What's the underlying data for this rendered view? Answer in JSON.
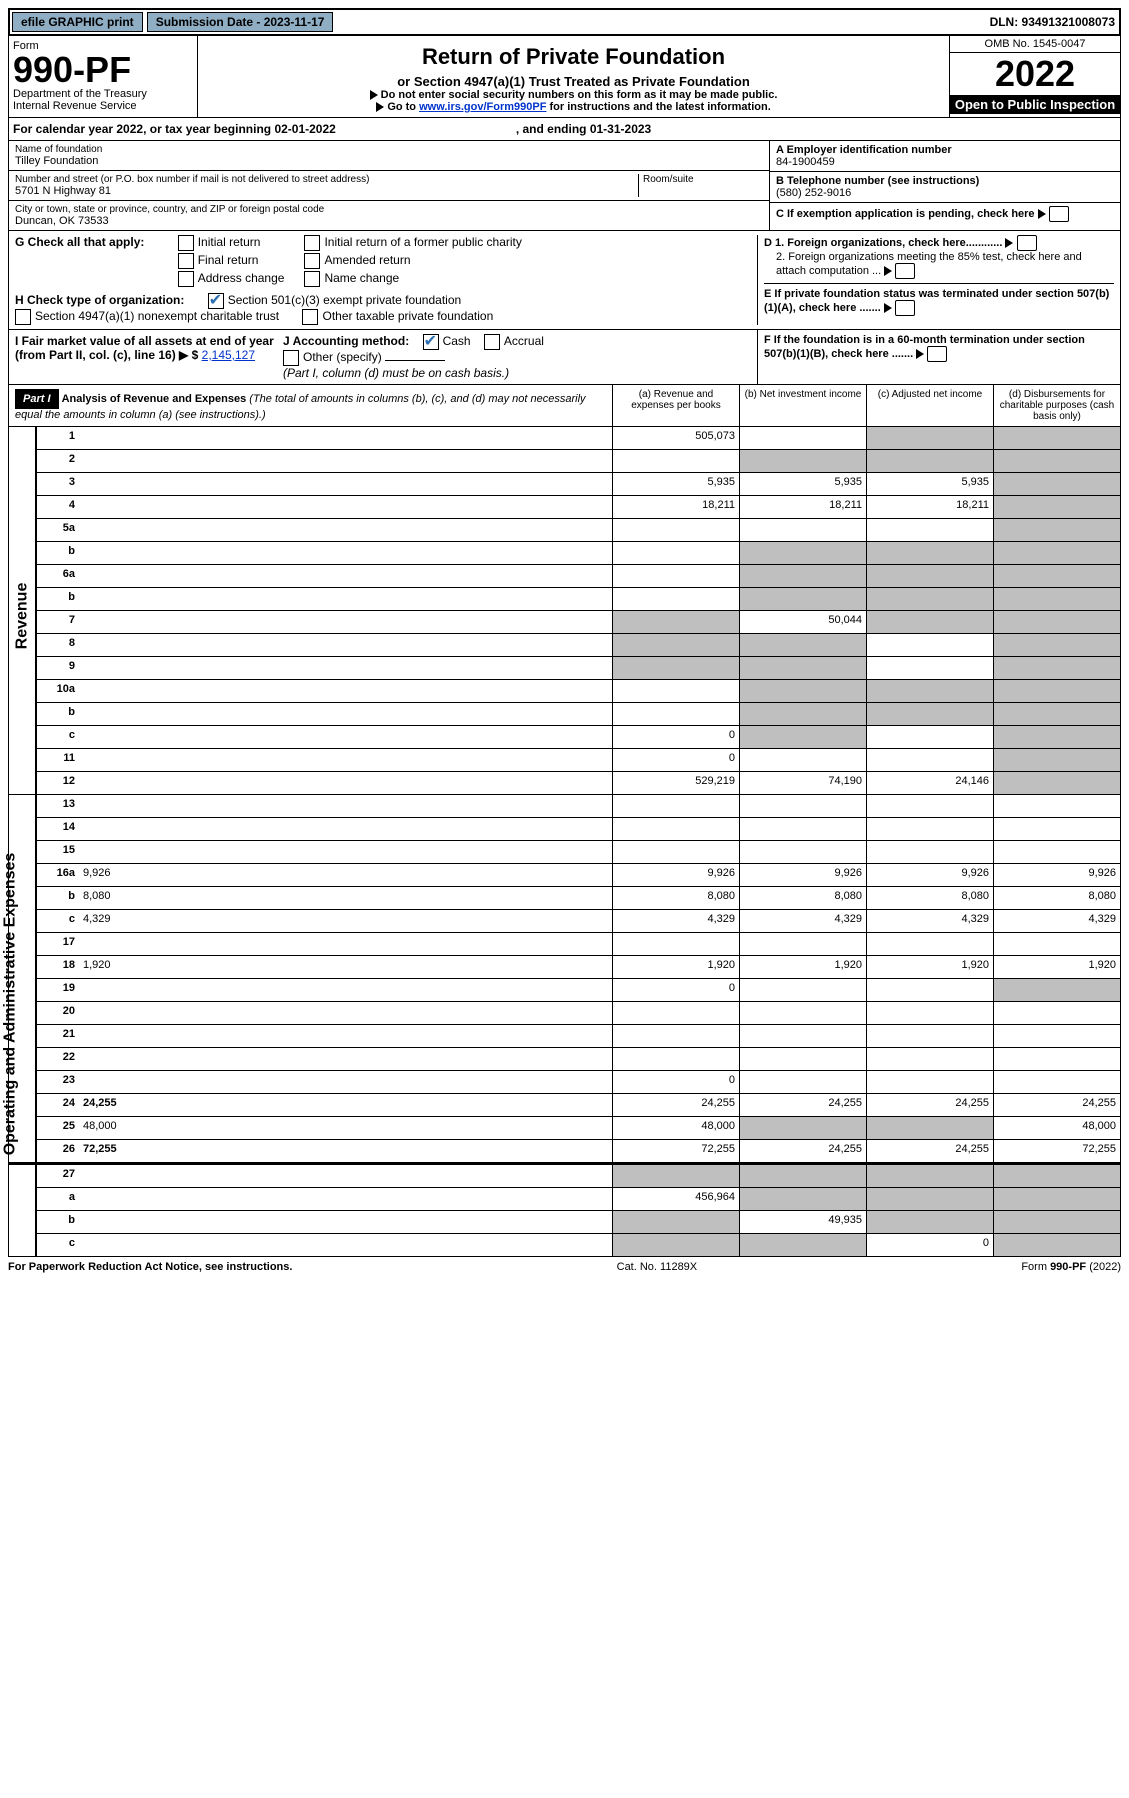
{
  "top": {
    "efile": "efile GRAPHIC print",
    "submission": "Submission Date - 2023-11-17",
    "dln": "DLN: 93491321008073"
  },
  "header": {
    "form_label": "Form",
    "form_no": "990-PF",
    "dept": "Department of the Treasury",
    "irs": "Internal Revenue Service",
    "title": "Return of Private Foundation",
    "subtitle": "or Section 4947(a)(1) Trust Treated as Private Foundation",
    "note1": "Do not enter social security numbers on this form as it may be made public.",
    "note2_pre": "Go to ",
    "note2_link": "www.irs.gov/Form990PF",
    "note2_post": " for instructions and the latest information.",
    "omb": "OMB No. 1545-0047",
    "year": "2022",
    "inspect": "Open to Public Inspection"
  },
  "cal": {
    "text": "For calendar year 2022, or tax year beginning 02-01-2022",
    "ending": ", and ending 01-31-2023"
  },
  "id": {
    "name_lbl": "Name of foundation",
    "name_val": "Tilley Foundation",
    "addr_lbl": "Number and street (or P.O. box number if mail is not delivered to street address)",
    "addr_val": "5701 N Highway 81",
    "room_lbl": "Room/suite",
    "city_lbl": "City or town, state or province, country, and ZIP or foreign postal code",
    "city_val": "Duncan, OK  73533",
    "a_lbl": "A Employer identification number",
    "a_val": "84-1900459",
    "b_lbl": "B Telephone number (see instructions)",
    "b_val": "(580) 252-9016",
    "c_lbl": "C If exemption application is pending, check here"
  },
  "g": {
    "label": "G Check all that apply:",
    "opts": [
      "Initial return",
      "Final return",
      "Address change",
      "Initial return of a former public charity",
      "Amended return",
      "Name change"
    ],
    "d1": "D 1. Foreign organizations, check here............",
    "d2": "2. Foreign organizations meeting the 85% test, check here and attach computation ...",
    "e": "E  If private foundation status was terminated under section 507(b)(1)(A), check here .......",
    "f": "F  If the foundation is in a 60-month termination under section 507(b)(1)(B), check here ......."
  },
  "h": {
    "label": "H Check type of organization:",
    "opt1": "Section 501(c)(3) exempt private foundation",
    "opt2": "Section 4947(a)(1) nonexempt charitable trust",
    "opt3": "Other taxable private foundation"
  },
  "i": {
    "label": "I Fair market value of all assets at end of year (from Part II, col. (c), line 16)",
    "arrow": "▶ $",
    "val": "2,145,127"
  },
  "j": {
    "label": "J Accounting method:",
    "cash": "Cash",
    "accrual": "Accrual",
    "other": "Other (specify)",
    "note": "(Part I, column (d) must be on cash basis.)"
  },
  "part1": {
    "label": "Part I",
    "title": "Analysis of Revenue and Expenses",
    "title_note": "(The total of amounts in columns (b), (c), and (d) may not necessarily equal the amounts in column (a) (see instructions).)",
    "col_a": "(a) Revenue and expenses per books",
    "col_b": "(b) Net investment income",
    "col_c": "(c) Adjusted net income",
    "col_d": "(d) Disbursements for charitable purposes (cash basis only)"
  },
  "side": {
    "rev": "Revenue",
    "exp": "Operating and Administrative Expenses"
  },
  "rows": [
    {
      "n": "1",
      "d": "",
      "a": "505,073",
      "b": "",
      "c": "",
      "gb": false,
      "gc": true,
      "gd": true
    },
    {
      "n": "2",
      "d": "",
      "a": "",
      "b": "",
      "c": "",
      "gb": true,
      "gc": true,
      "gd": true,
      "noborder_a": true
    },
    {
      "n": "3",
      "d": "",
      "a": "5,935",
      "b": "5,935",
      "c": "5,935",
      "gd": true
    },
    {
      "n": "4",
      "d": "",
      "a": "18,211",
      "b": "18,211",
      "c": "18,211",
      "gd": true
    },
    {
      "n": "5a",
      "d": "",
      "a": "",
      "b": "",
      "c": "",
      "gd": true
    },
    {
      "n": "b",
      "d": "",
      "a": "",
      "b": "",
      "c": "",
      "gb": true,
      "gc": true,
      "gd": true,
      "inset": true
    },
    {
      "n": "6a",
      "d": "",
      "a": "",
      "b": "",
      "c": "",
      "gb": true,
      "gc": true,
      "gd": true
    },
    {
      "n": "b",
      "d": "",
      "a": "",
      "b": "",
      "c": "",
      "gb": true,
      "gc": true,
      "gd": true,
      "inset": true
    },
    {
      "n": "7",
      "d": "",
      "a": "",
      "b": "50,044",
      "c": "",
      "ga": true,
      "gc": true,
      "gd": true
    },
    {
      "n": "8",
      "d": "",
      "a": "",
      "b": "",
      "c": "",
      "ga": true,
      "gb": true,
      "gd": true
    },
    {
      "n": "9",
      "d": "",
      "a": "",
      "b": "",
      "c": "",
      "ga": true,
      "gb": true,
      "gd": true
    },
    {
      "n": "10a",
      "d": "",
      "a": "",
      "b": "",
      "c": "",
      "gb": true,
      "gc": true,
      "gd": true,
      "inset": true
    },
    {
      "n": "b",
      "d": "",
      "a": "",
      "b": "",
      "c": "",
      "gb": true,
      "gc": true,
      "gd": true,
      "inset": true
    },
    {
      "n": "c",
      "d": "",
      "a": "0",
      "b": "",
      "c": "",
      "gb": true,
      "gd": true
    },
    {
      "n": "11",
      "d": "",
      "a": "0",
      "b": "",
      "c": "",
      "gd": true
    },
    {
      "n": "12",
      "d": "",
      "a": "529,219",
      "b": "74,190",
      "c": "24,146",
      "gd": true,
      "bold": true
    }
  ],
  "exp_rows": [
    {
      "n": "13",
      "d": "",
      "a": "",
      "b": "",
      "c": ""
    },
    {
      "n": "14",
      "d": "",
      "a": "",
      "b": "",
      "c": ""
    },
    {
      "n": "15",
      "d": "",
      "a": "",
      "b": "",
      "c": ""
    },
    {
      "n": "16a",
      "d": "9,926",
      "a": "9,926",
      "b": "9,926",
      "c": "9,926"
    },
    {
      "n": "b",
      "d": "8,080",
      "a": "8,080",
      "b": "8,080",
      "c": "8,080"
    },
    {
      "n": "c",
      "d": "4,329",
      "a": "4,329",
      "b": "4,329",
      "c": "4,329"
    },
    {
      "n": "17",
      "d": "",
      "a": "",
      "b": "",
      "c": ""
    },
    {
      "n": "18",
      "d": "1,920",
      "a": "1,920",
      "b": "1,920",
      "c": "1,920"
    },
    {
      "n": "19",
      "d": "",
      "a": "0",
      "b": "",
      "c": "",
      "gd": true
    },
    {
      "n": "20",
      "d": "",
      "a": "",
      "b": "",
      "c": ""
    },
    {
      "n": "21",
      "d": "",
      "a": "",
      "b": "",
      "c": ""
    },
    {
      "n": "22",
      "d": "",
      "a": "",
      "b": "",
      "c": ""
    },
    {
      "n": "23",
      "d": "",
      "a": "0",
      "b": "",
      "c": ""
    },
    {
      "n": "24",
      "d": "24,255",
      "a": "24,255",
      "b": "24,255",
      "c": "24,255",
      "bold": true
    },
    {
      "n": "25",
      "d": "48,000",
      "a": "48,000",
      "b": "",
      "c": "",
      "gb": true,
      "gc": true
    },
    {
      "n": "26",
      "d": "72,255",
      "a": "72,255",
      "b": "24,255",
      "c": "24,255",
      "bold": true
    }
  ],
  "bottom_rows": [
    {
      "n": "27",
      "d": "",
      "a": "",
      "b": "",
      "c": "",
      "ga": true,
      "gb": true,
      "gc": true,
      "gd": true
    },
    {
      "n": "a",
      "d": "",
      "a": "456,964",
      "b": "",
      "c": "",
      "gb": true,
      "gc": true,
      "gd": true,
      "bold": true
    },
    {
      "n": "b",
      "d": "",
      "a": "",
      "b": "49,935",
      "c": "",
      "ga": true,
      "gc": true,
      "gd": true,
      "bold": true
    },
    {
      "n": "c",
      "d": "",
      "a": "",
      "b": "",
      "c": "0",
      "ga": true,
      "gb": true,
      "gd": true,
      "bold": true
    }
  ],
  "footer": {
    "left": "For Paperwork Reduction Act Notice, see instructions.",
    "mid": "Cat. No. 11289X",
    "right": "Form 990-PF (2022)"
  }
}
